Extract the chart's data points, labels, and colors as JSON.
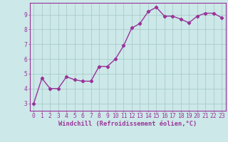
{
  "x": [
    0,
    1,
    2,
    3,
    4,
    5,
    6,
    7,
    8,
    9,
    10,
    11,
    12,
    13,
    14,
    15,
    16,
    17,
    18,
    19,
    20,
    21,
    22,
    23
  ],
  "y": [
    3.0,
    4.7,
    4.0,
    4.0,
    4.8,
    4.6,
    4.5,
    4.5,
    5.5,
    5.5,
    6.0,
    6.9,
    8.1,
    8.4,
    9.2,
    9.5,
    8.9,
    8.9,
    8.7,
    8.45,
    8.9,
    9.1,
    9.1,
    8.8
  ],
  "line_color": "#993399",
  "marker": "D",
  "marker_size": 2.2,
  "bg_color": "#cce8e8",
  "grid_color": "#aacccc",
  "axis_color": "#993399",
  "xlabel": "Windchill (Refroidissement éolien,°C)",
  "xlabel_bottom": "Windchill (Refroidissement éolien,°C)",
  "xlim": [
    -0.5,
    23.5
  ],
  "ylim": [
    2.5,
    9.8
  ],
  "yticks": [
    3,
    4,
    5,
    6,
    7,
    8,
    9
  ],
  "xticks": [
    0,
    1,
    2,
    3,
    4,
    5,
    6,
    7,
    8,
    9,
    10,
    11,
    12,
    13,
    14,
    15,
    16,
    17,
    18,
    19,
    20,
    21,
    22,
    23
  ],
  "tick_fontsize": 5.8,
  "xlabel_fontsize": 6.2,
  "linewidth": 1.0
}
